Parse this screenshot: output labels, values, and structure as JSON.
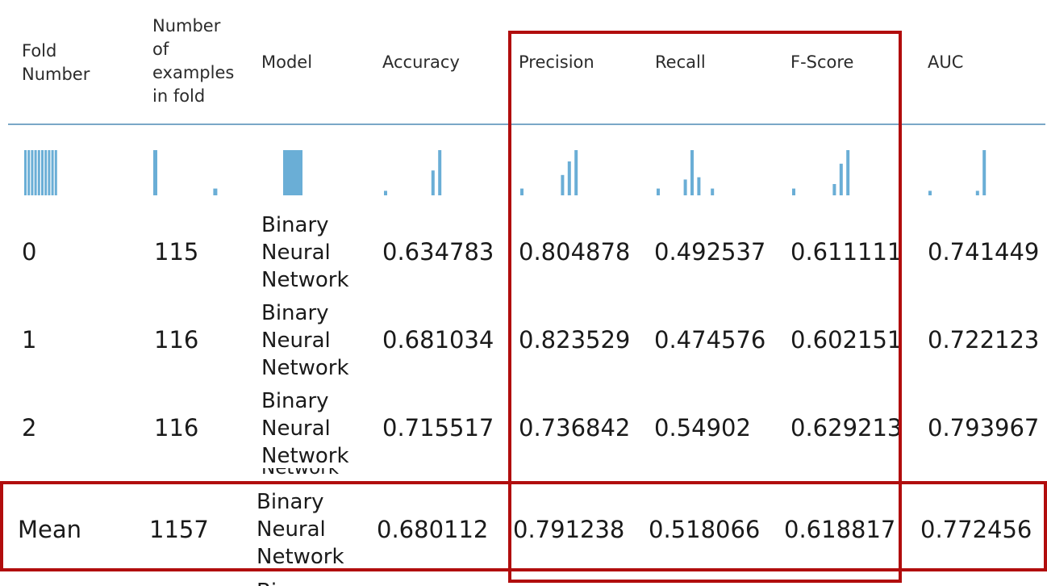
{
  "columns": [
    {
      "key": "fold",
      "label_lines": [
        "Fold",
        "Number"
      ]
    },
    {
      "key": "examples",
      "label_lines": [
        "Number",
        "of",
        "examples",
        "in fold"
      ]
    },
    {
      "key": "model",
      "label_lines": [
        "Model"
      ]
    },
    {
      "key": "accuracy",
      "label_lines": [
        "Accuracy"
      ]
    },
    {
      "key": "precision",
      "label_lines": [
        "Precision"
      ]
    },
    {
      "key": "recall",
      "label_lines": [
        "Recall"
      ]
    },
    {
      "key": "fscore",
      "label_lines": [
        "F-Score"
      ]
    },
    {
      "key": "auc",
      "label_lines": [
        "AUC"
      ]
    }
  ],
  "rows": [
    {
      "fold": "0",
      "examples": "115",
      "model": [
        "Binary",
        "Neural",
        "Network"
      ],
      "accuracy": "0.634783",
      "precision": "0.804878",
      "recall": "0.492537",
      "fscore": "0.611111",
      "auc": "0.741449"
    },
    {
      "fold": "1",
      "examples": "116",
      "model": [
        "Binary",
        "Neural",
        "Network"
      ],
      "accuracy": "0.681034",
      "precision": "0.823529",
      "recall": "0.474576",
      "fscore": "0.602151",
      "auc": "0.722123"
    },
    {
      "fold": "2",
      "examples": "116",
      "model": [
        "Binary",
        "Neural",
        "Network"
      ],
      "accuracy": "0.715517",
      "precision": "0.736842",
      "recall": "0.54902",
      "fscore": "0.629213",
      "auc": "0.793967"
    }
  ],
  "clipped_row": {
    "model_tail": "Network"
  },
  "mean": {
    "fold": "Mean",
    "examples": "1157",
    "model": [
      "Binary",
      "Neural",
      "Network"
    ],
    "accuracy": "0.680112",
    "precision": "0.791238",
    "recall": "0.518066",
    "fscore": "0.618817",
    "auc": "0.772456"
  },
  "next_row_peek": {
    "model_head": "Binary"
  },
  "histograms": {
    "fold": [
      1,
      1,
      1,
      1,
      1,
      1,
      1,
      1,
      1,
      1
    ],
    "examples": [
      1,
      0,
      0,
      0,
      0,
      0,
      0,
      0,
      0.15
    ],
    "model": [
      1
    ],
    "accuracy": [
      0.1,
      0,
      0,
      0,
      0,
      0,
      0,
      0.55,
      1
    ],
    "precision": [
      0.15,
      0,
      0,
      0,
      0,
      0,
      0.45,
      0.75,
      1
    ],
    "recall": [
      0.15,
      0,
      0,
      0,
      0.35,
      1,
      0.4,
      0,
      0.15
    ],
    "fscore": [
      0.15,
      0,
      0,
      0,
      0,
      0,
      0.25,
      0.7,
      1
    ],
    "auc": [
      0.1,
      0,
      0,
      0,
      0,
      0,
      0,
      0.1,
      1
    ]
  },
  "colors": {
    "bar": "#6aaed6",
    "highlight": "#b10d0d",
    "divider": "#7aa7c7"
  }
}
